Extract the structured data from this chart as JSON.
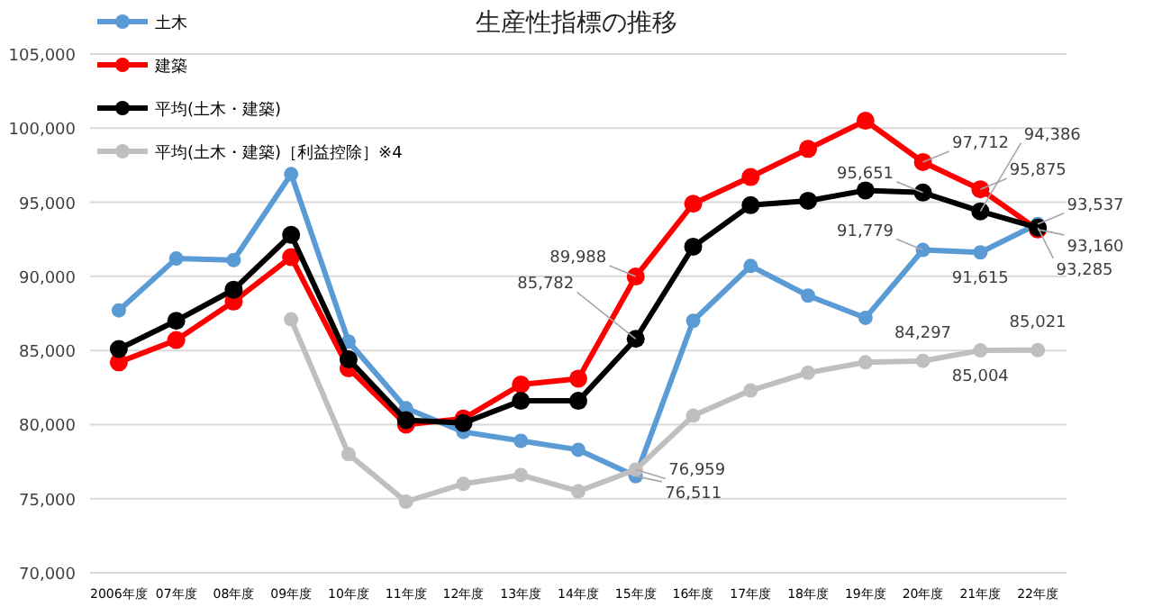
{
  "chart_data": {
    "type": "line",
    "title": "生産性指標の推移",
    "categories": [
      "2006年度",
      "07年度",
      "08年度",
      "09年度",
      "10年度",
      "11年度",
      "12年度",
      "13年度",
      "14年度",
      "15年度",
      "16年度",
      "17年度",
      "18年度",
      "19年度",
      "20年度",
      "21年度",
      "22年度"
    ],
    "series": [
      {
        "name": "土木",
        "color": "#5b9bd5",
        "values": [
          87700,
          91200,
          91100,
          96900,
          85600,
          81100,
          79500,
          78900,
          78300,
          76511,
          87000,
          90700,
          88700,
          87200,
          91779,
          91615,
          93537
        ],
        "value_labels": [
          null,
          null,
          null,
          null,
          null,
          null,
          null,
          null,
          null,
          "76,511",
          null,
          null,
          null,
          null,
          "91,779",
          "91,615",
          "93,537"
        ]
      },
      {
        "name": "建築",
        "color": "#ff0000",
        "values": [
          84200,
          85700,
          88300,
          91300,
          83800,
          80000,
          80400,
          82700,
          83100,
          89988,
          94900,
          96700,
          98600,
          100500,
          97712,
          95875,
          93160
        ],
        "value_labels": [
          null,
          null,
          null,
          null,
          null,
          null,
          null,
          null,
          null,
          "89,988",
          null,
          null,
          null,
          null,
          "97,712",
          "95,875",
          "93,160"
        ]
      },
      {
        "name": "平均(土木・建築)",
        "color": "#000000",
        "values": [
          85100,
          87000,
          89100,
          92800,
          84400,
          80300,
          80100,
          81600,
          81600,
          85782,
          92000,
          94800,
          95100,
          95800,
          95651,
          94386,
          93285
        ],
        "value_labels": [
          null,
          null,
          null,
          null,
          null,
          null,
          null,
          null,
          null,
          "85,782",
          null,
          null,
          null,
          null,
          "95,651",
          "94,386",
          "93,285"
        ]
      },
      {
        "name": "平均(土木・建築)［利益控除］※4",
        "color": "#bfbfbf",
        "values": [
          null,
          null,
          null,
          87100,
          78000,
          74800,
          76000,
          76600,
          75500,
          76959,
          80600,
          82300,
          83500,
          84200,
          84297,
          85004,
          85021
        ],
        "value_labels": [
          null,
          null,
          null,
          null,
          null,
          null,
          null,
          null,
          null,
          "76,959",
          null,
          null,
          null,
          null,
          "84,297",
          "85,004",
          "85,021"
        ]
      }
    ],
    "ylim": [
      70000,
      105000
    ],
    "yticks": [
      {
        "value": 70000,
        "label": "70,000"
      },
      {
        "value": 75000,
        "label": "75,000"
      },
      {
        "value": 80000,
        "label": "80,000"
      },
      {
        "value": 85000,
        "label": "85,000"
      },
      {
        "value": 90000,
        "label": "90,000"
      },
      {
        "value": 95000,
        "label": "95,000"
      },
      {
        "value": 100000,
        "label": "100,000"
      },
      {
        "value": 105000,
        "label": "105,000"
      }
    ],
    "grid": "y",
    "legend": "top left",
    "marker": "circle",
    "line_style": "solid"
  }
}
